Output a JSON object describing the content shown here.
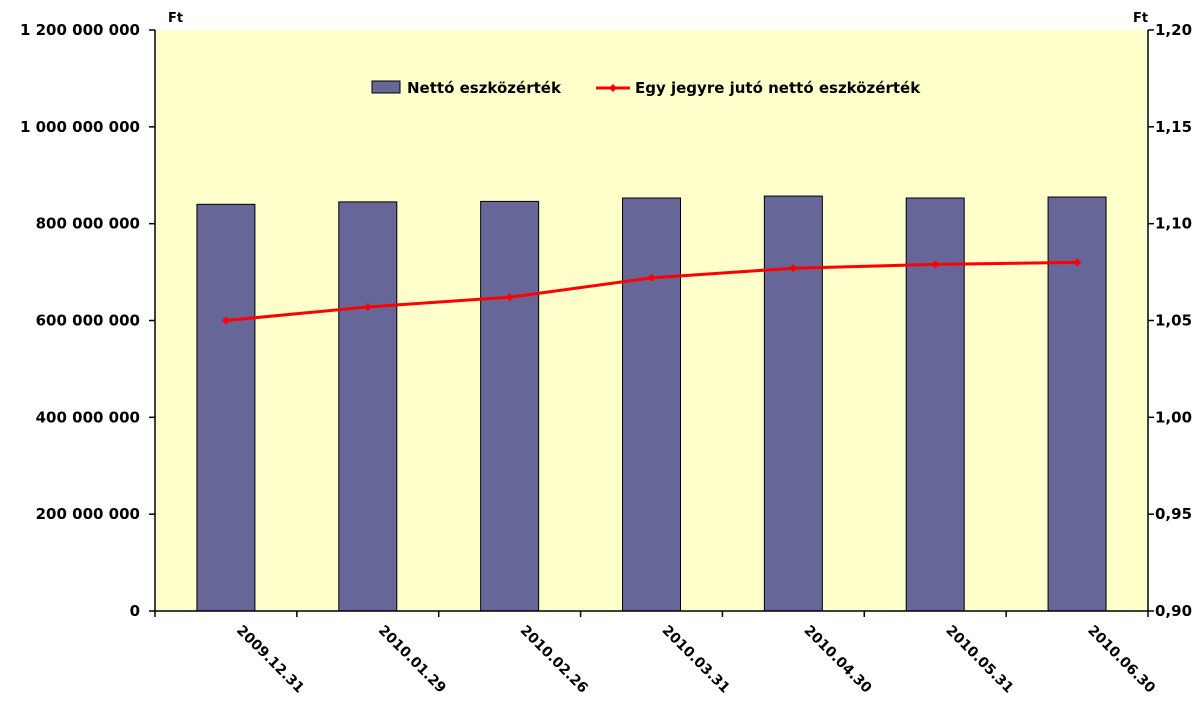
{
  "chart_data": {
    "type": "bar+line",
    "categories": [
      "2009.12.31",
      "2010.01.29",
      "2010.02.26",
      "2010.03.31",
      "2010.04.30",
      "2010.05.31",
      "2010.06.30"
    ],
    "series": [
      {
        "name": "Nettó eszközérték",
        "type": "bar",
        "axis": "left",
        "values": [
          840000000,
          845000000,
          846000000,
          853000000,
          857000000,
          853000000,
          855000000
        ]
      },
      {
        "name": "Egy jegyre jutó nettó eszközérték",
        "type": "line",
        "axis": "right",
        "values": [
          1.05,
          1.057,
          1.062,
          1.072,
          1.077,
          1.079,
          1.08
        ]
      }
    ],
    "y_left": {
      "unit": "Ft",
      "ylim": [
        0,
        1200000000
      ],
      "ticks": [
        0,
        200000000,
        400000000,
        600000000,
        800000000,
        1000000000,
        1200000000
      ],
      "tick_labels": [
        "0",
        "200 000 000",
        "400 000 000",
        "600 000 000",
        "800 000 000",
        "1 000 000 000",
        "1 200 000 000"
      ]
    },
    "y_right": {
      "unit": "Ft",
      "ylim": [
        0.9,
        1.2
      ],
      "ticks": [
        0.9,
        0.95,
        1.0,
        1.05,
        1.1,
        1.15,
        1.2
      ],
      "tick_labels": [
        "0,90",
        "0,95",
        "1,00",
        "1,05",
        "1,10",
        "1,15",
        "1,20"
      ]
    },
    "grid": false,
    "legend_position": "top-center",
    "colors": {
      "plot_background": "#ffffcc",
      "bar_fill": "#666699",
      "bar_stroke": "#000000",
      "line": "#ff0000",
      "marker": "#ff0000",
      "axis": "#000000"
    }
  }
}
